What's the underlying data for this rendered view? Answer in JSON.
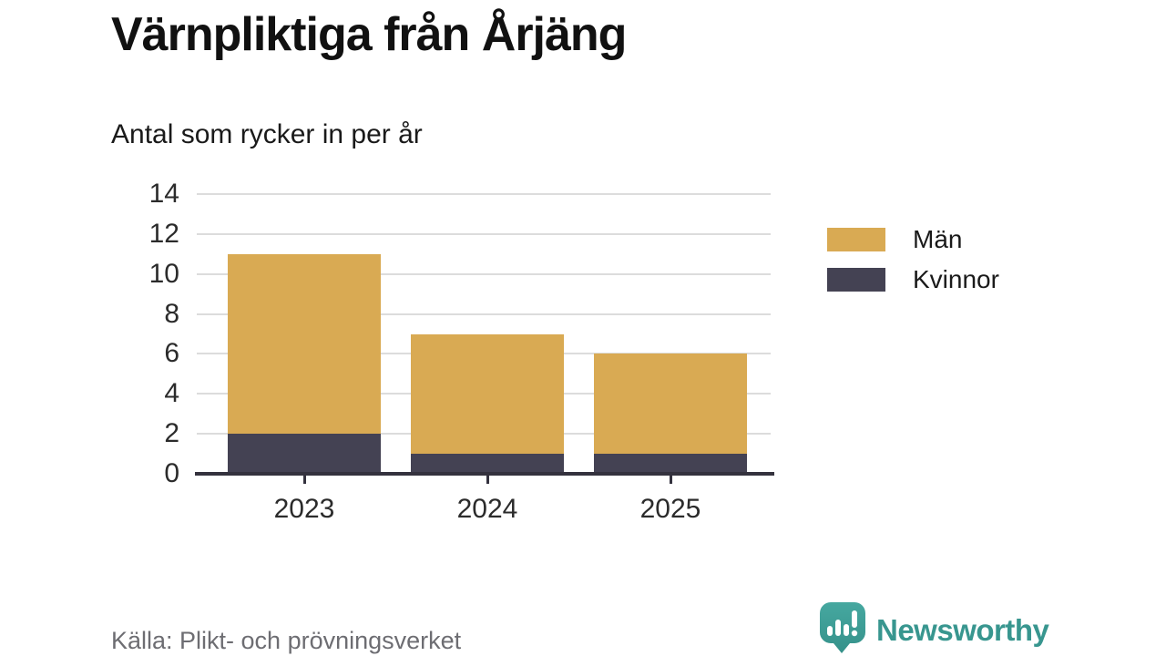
{
  "header": {
    "title": "Värnpliktiga från Årjäng",
    "subtitle": "Antal som rycker in per år"
  },
  "chart_data": {
    "type": "bar",
    "stacked": true,
    "categories": [
      "2023",
      "2024",
      "2025"
    ],
    "series": [
      {
        "name": "Män",
        "values": [
          9,
          6,
          5
        ],
        "color": "#D9AA53"
      },
      {
        "name": "Kvinnor",
        "values": [
          2,
          1,
          1
        ],
        "color": "#444253"
      }
    ],
    "stack_order_bottom_up": [
      "Kvinnor",
      "Män"
    ],
    "totals": [
      11,
      7,
      6
    ],
    "title": "Värnpliktiga från Årjäng",
    "subtitle": "Antal som rycker in per år",
    "xlabel": "",
    "ylabel": "",
    "ylim": [
      0,
      14
    ],
    "yticks": [
      0,
      2,
      4,
      6,
      8,
      10,
      12,
      14
    ],
    "grid": true,
    "legend_position": "right"
  },
  "legend": {
    "items": [
      {
        "label": "Män",
        "color": "#D9AA53"
      },
      {
        "label": "Kvinnor",
        "color": "#444253"
      }
    ]
  },
  "footer": {
    "source": "Källa: Plikt- och prövningsverket",
    "brand": "Newsworthy"
  },
  "icons": {
    "brand_icon": "speech-bubble-bar-chart-exclamation-icon"
  },
  "colors": {
    "men": "#D9AA53",
    "women": "#444253",
    "axis": "#34323E",
    "gridline": "#DCDCDC",
    "text": "#1a1a1a",
    "muted_text": "#6d6d72",
    "brand_teal": "#38968F",
    "background": "#FFFFFF"
  }
}
